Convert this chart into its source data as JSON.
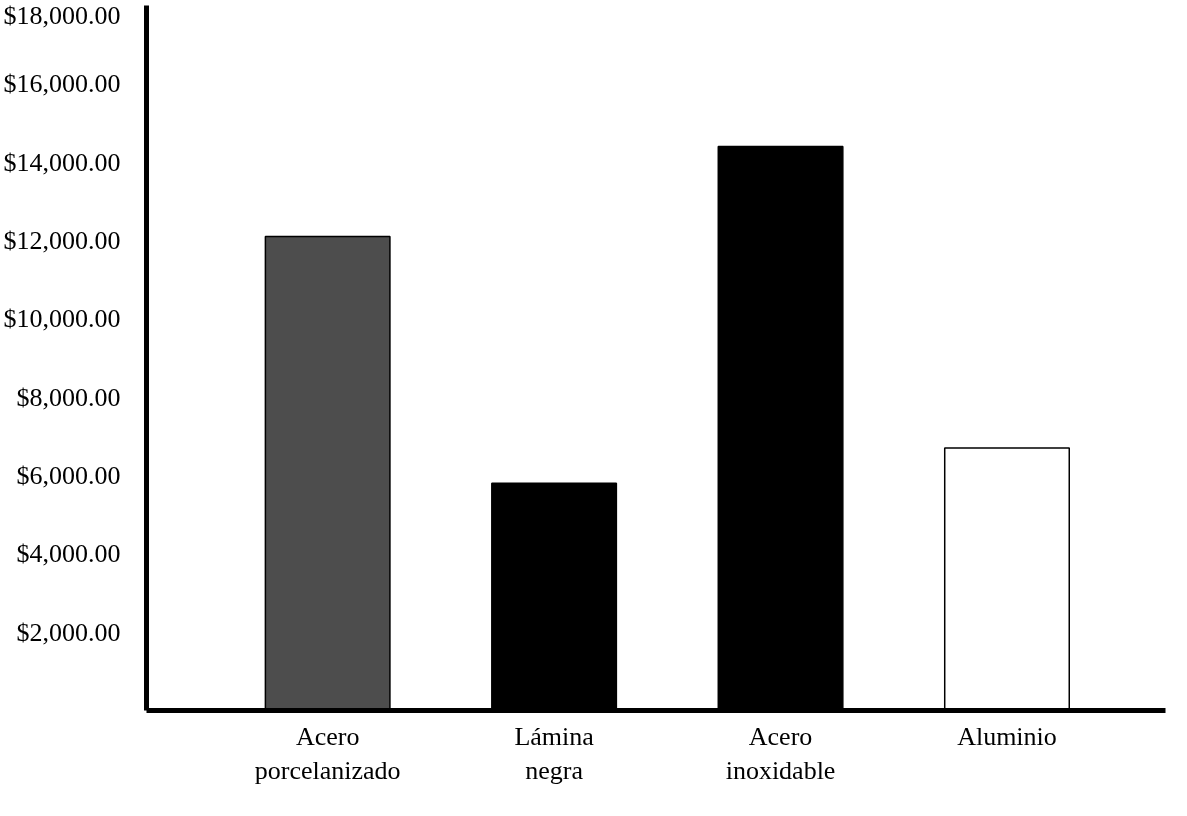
{
  "chart_data": {
    "type": "bar",
    "categories": [
      "Acero\nporcelanizado",
      "Lámina\nnegra",
      "Acero\ninoxidable",
      "Aluminio"
    ],
    "values": [
      12100,
      5800,
      14400,
      6700
    ],
    "colors": [
      "#4d4d4d",
      "#000000",
      "#000000",
      "#ffffff"
    ],
    "ylim": [
      0,
      18000
    ],
    "yticks": [
      {
        "value": 2000,
        "label": "$2,000.00"
      },
      {
        "value": 4000,
        "label": "$4,000.00"
      },
      {
        "value": 6000,
        "label": "$6,000.00"
      },
      {
        "value": 8000,
        "label": "$8,000.00"
      },
      {
        "value": 10000,
        "label": "$10,000.00"
      },
      {
        "value": 12000,
        "label": "$12,000.00"
      },
      {
        "value": 14000,
        "label": "$14,000.00"
      },
      {
        "value": 16000,
        "label": "$16,000.00"
      },
      {
        "value": 18000,
        "label": "$18,000.00"
      }
    ],
    "grid": false
  }
}
